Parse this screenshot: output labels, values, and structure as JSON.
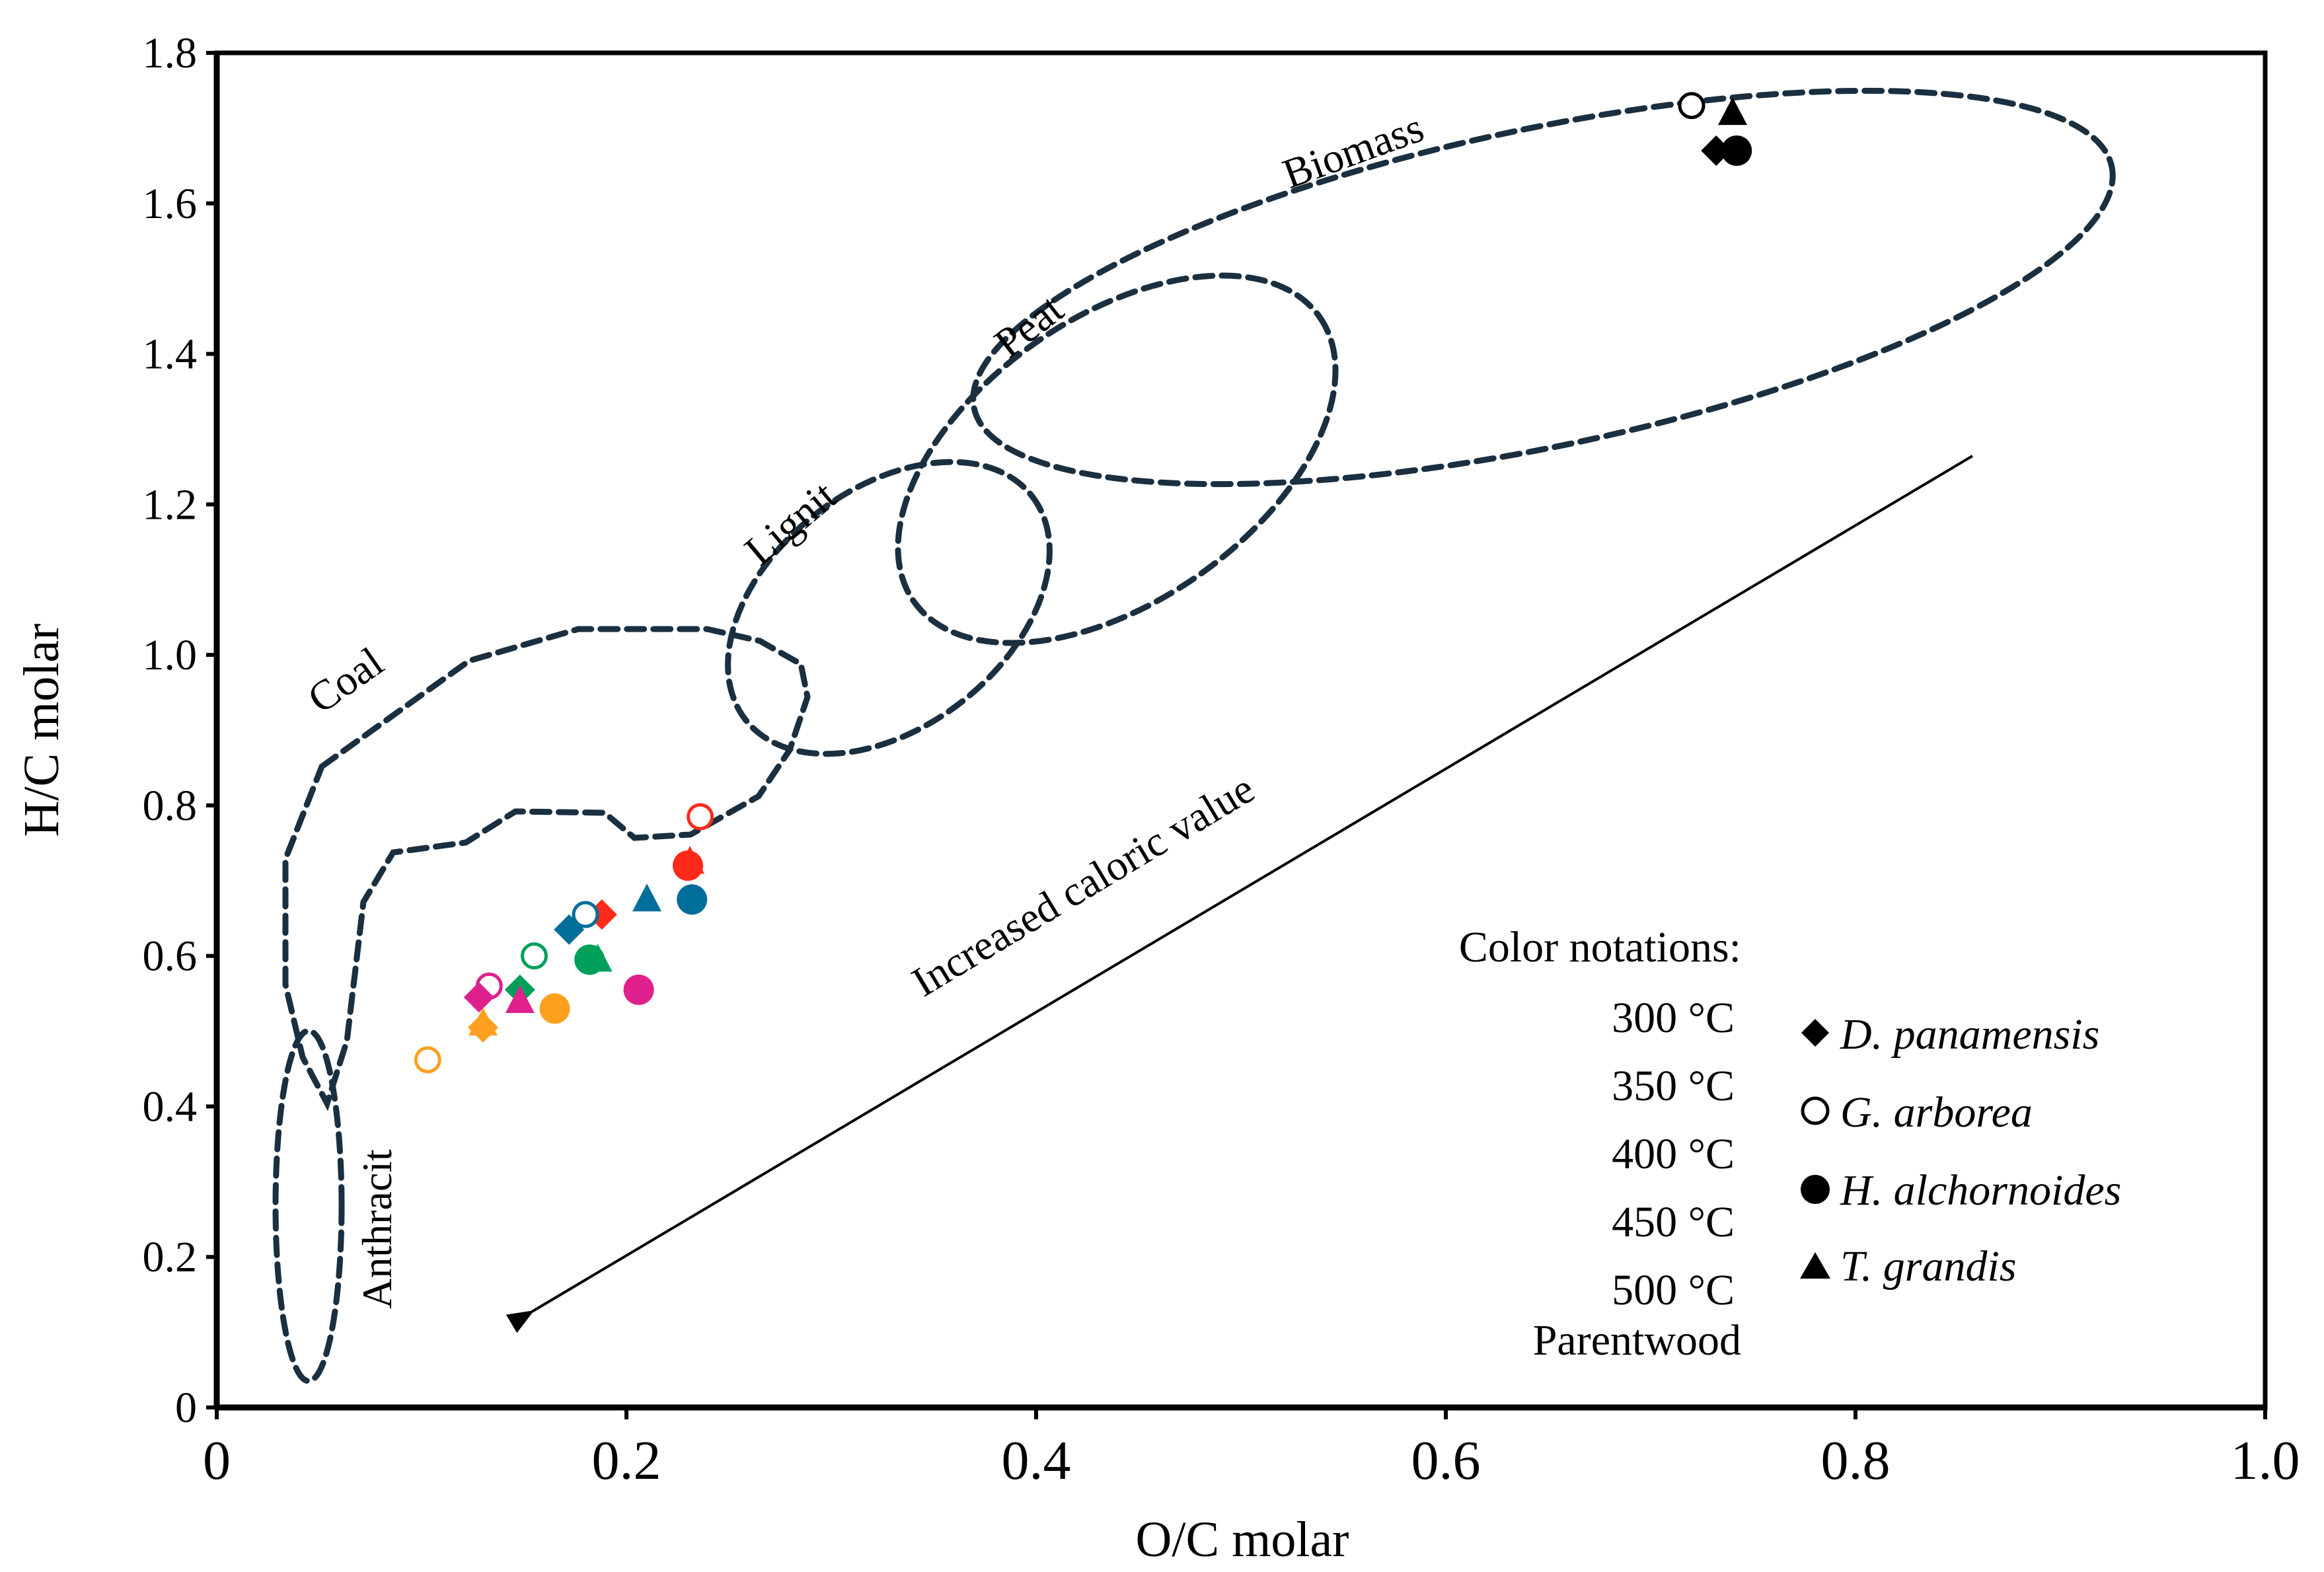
{
  "chart_data": {
    "type": "scatter",
    "title": "",
    "xlabel": "O/C molar",
    "ylabel": "H/C molar",
    "xlim": [
      0,
      1.0
    ],
    "ylim": [
      0,
      1.8
    ],
    "x_ticks": [
      "0",
      "0.2",
      "0.4",
      "0.6",
      "0.8",
      "1.0"
    ],
    "y_ticks": [
      "0",
      "0.2",
      "0.4",
      "0.6",
      "0.8",
      "1.0",
      "1.2",
      "1.4",
      "1.6",
      "1.8"
    ],
    "grid": false,
    "legend_position": "bottom-right",
    "region_labels": [
      "Biomass",
      "Peat",
      "Lignit",
      "Coal",
      "Anthracit"
    ],
    "annotation": "Increased caloric value",
    "legend": {
      "title": "Color notations:",
      "temperatures": [
        {
          "label": "300 °C",
          "color": "#ff2a1a"
        },
        {
          "label": "350 °C",
          "color": "#006e9a"
        },
        {
          "label": "400 °C",
          "color": "#00a05a"
        },
        {
          "label": "450 °C",
          "color": "#e0208c"
        },
        {
          "label": "500 °C",
          "color": "#ffa020"
        },
        {
          "label": "Parentwood",
          "color": "#000000"
        }
      ],
      "species": [
        {
          "label": "D. panamensis",
          "marker": "diamond"
        },
        {
          "label": "G. arborea",
          "marker": "open-circle"
        },
        {
          "label": "H. alchornoides",
          "marker": "filled-circle"
        },
        {
          "label": "T. grandis",
          "marker": "triangle"
        }
      ]
    },
    "points": [
      {
        "series": "Parentwood",
        "species": "G. arborea",
        "x": 0.72,
        "y": 1.73
      },
      {
        "series": "Parentwood",
        "species": "T. grandis",
        "x": 0.74,
        "y": 1.72
      },
      {
        "series": "Parentwood",
        "species": "D. panamensis",
        "x": 0.732,
        "y": 1.67
      },
      {
        "series": "Parentwood",
        "species": "H. alchornoides",
        "x": 0.742,
        "y": 1.67
      },
      {
        "series": "300 °C",
        "species": "G. arborea",
        "x": 0.236,
        "y": 0.785
      },
      {
        "series": "300 °C",
        "species": "H. alchornoides",
        "x": 0.23,
        "y": 0.72
      },
      {
        "series": "300 °C",
        "species": "T. grandis",
        "x": 0.231,
        "y": 0.725
      },
      {
        "series": "300 °C",
        "species": "D. panamensis",
        "x": 0.188,
        "y": 0.655
      },
      {
        "series": "350 °C",
        "species": "T. grandis",
        "x": 0.21,
        "y": 0.675
      },
      {
        "series": "350 °C",
        "species": "H. alchornoides",
        "x": 0.232,
        "y": 0.675
      },
      {
        "series": "350 °C",
        "species": "G. arborea",
        "x": 0.18,
        "y": 0.655
      },
      {
        "series": "350 °C",
        "species": "D. panamensis",
        "x": 0.172,
        "y": 0.635
      },
      {
        "series": "400 °C",
        "species": "G. arborea",
        "x": 0.155,
        "y": 0.6
      },
      {
        "series": "400 °C",
        "species": "H. alchornoides",
        "x": 0.182,
        "y": 0.595
      },
      {
        "series": "400 °C",
        "species": "T. grandis",
        "x": 0.186,
        "y": 0.595
      },
      {
        "series": "400 °C",
        "species": "D. panamensis",
        "x": 0.148,
        "y": 0.555
      },
      {
        "series": "450 °C",
        "species": "G. arborea",
        "x": 0.133,
        "y": 0.56
      },
      {
        "series": "450 °C",
        "species": "D. panamensis",
        "x": 0.128,
        "y": 0.545
      },
      {
        "series": "450 °C",
        "species": "T. grandis",
        "x": 0.148,
        "y": 0.54
      },
      {
        "series": "450 °C",
        "species": "H. alchornoides",
        "x": 0.206,
        "y": 0.555
      },
      {
        "series": "500 °C",
        "species": "H. alchornoides",
        "x": 0.165,
        "y": 0.53
      },
      {
        "series": "500 °C",
        "species": "T. grandis",
        "x": 0.13,
        "y": 0.51
      },
      {
        "series": "500 °C",
        "species": "D. panamensis",
        "x": 0.13,
        "y": 0.505
      },
      {
        "series": "500 °C",
        "species": "G. arborea",
        "x": 0.103,
        "y": 0.462
      }
    ]
  }
}
